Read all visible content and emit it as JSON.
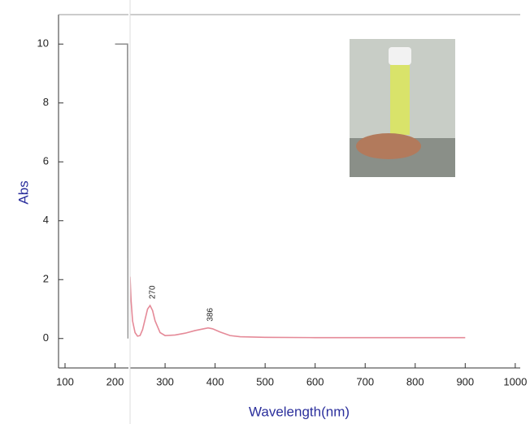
{
  "chart_data": {
    "type": "line",
    "x_label": "Wavelength(nm)",
    "y_label": "Abs",
    "xlim": [
      87,
      1010
    ],
    "ylim": [
      -1,
      11
    ],
    "xticks": [
      100,
      200,
      300,
      400,
      500,
      600,
      700,
      800,
      900,
      1000
    ],
    "yticks": [
      0,
      2,
      4,
      6,
      8,
      10
    ],
    "series": [
      {
        "color": "#8c8c8c",
        "x": [
          200,
          225,
          226
        ],
        "values": [
          10,
          10,
          0
        ]
      },
      {
        "color": "#e58a98",
        "x": [
          230,
          232,
          235,
          240,
          245,
          250,
          255,
          260,
          265,
          270,
          275,
          280,
          290,
          300,
          320,
          340,
          360,
          380,
          386,
          395,
          410,
          430,
          450,
          500,
          600,
          700,
          800,
          900
        ],
        "values": [
          2.1,
          1.3,
          0.6,
          0.2,
          0.08,
          0.1,
          0.3,
          0.65,
          1.0,
          1.12,
          0.95,
          0.6,
          0.2,
          0.1,
          0.12,
          0.18,
          0.27,
          0.34,
          0.36,
          0.33,
          0.22,
          0.1,
          0.06,
          0.04,
          0.03,
          0.03,
          0.03,
          0.03
        ]
      }
    ],
    "annotations": [
      {
        "label": "270",
        "x": 270,
        "y": 1.12
      },
      {
        "label": "386",
        "x": 386,
        "y": 0.36
      }
    ]
  }
}
